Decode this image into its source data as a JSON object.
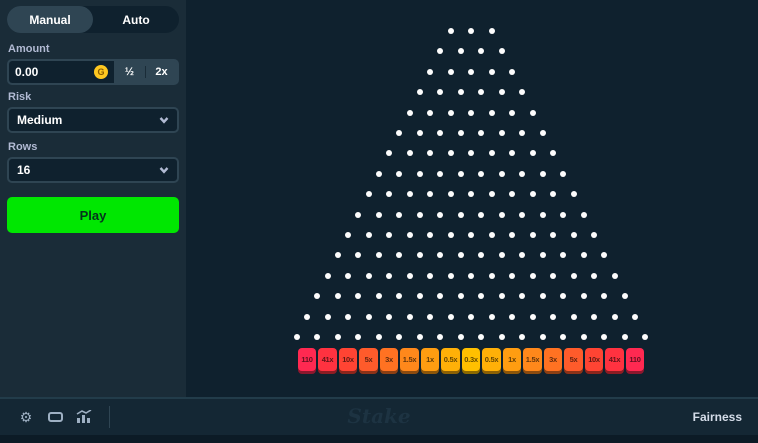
{
  "sidebar": {
    "tabs": {
      "manual": "Manual",
      "auto": "Auto"
    },
    "amount": {
      "label": "Amount",
      "value": "0.00",
      "coin_letter": "G",
      "half_label": "½",
      "double_label": "2x"
    },
    "risk": {
      "label": "Risk",
      "value": "Medium"
    },
    "rows": {
      "label": "Rows",
      "value": "16"
    },
    "play_label": "Play"
  },
  "board": {
    "rows": 16,
    "top_pegs": 3
  },
  "buckets": {
    "labels": [
      "110",
      "41x",
      "10x",
      "5x",
      "3x",
      "1.5x",
      "1x",
      "0.5x",
      "0.3x",
      "0.5x",
      "1x",
      "1.5x",
      "3x",
      "5x",
      "10x",
      "41x",
      "110"
    ],
    "colors": [
      "#ff2951",
      "#ff3240",
      "#ff4433",
      "#ff5b2b",
      "#ff7222",
      "#ff881b",
      "#ff9d11",
      "#ffb008",
      "#ffc000",
      "#ffb008",
      "#ff9d11",
      "#ff881b",
      "#ff7222",
      "#ff5b2b",
      "#ff4433",
      "#ff3240",
      "#ff2951"
    ]
  },
  "footer": {
    "logo": "Stake",
    "fairness_label": "Fairness",
    "icons": [
      "settings-gear",
      "theatre-mode",
      "live-stats"
    ]
  },
  "colors": {
    "accent_green": "#00e701",
    "coin_gold": "#ffc820",
    "sidebar_bg": "#1a2c38",
    "game_bg": "#0f212e",
    "panel": "#2f4553",
    "label_text": "#b1bad3"
  }
}
